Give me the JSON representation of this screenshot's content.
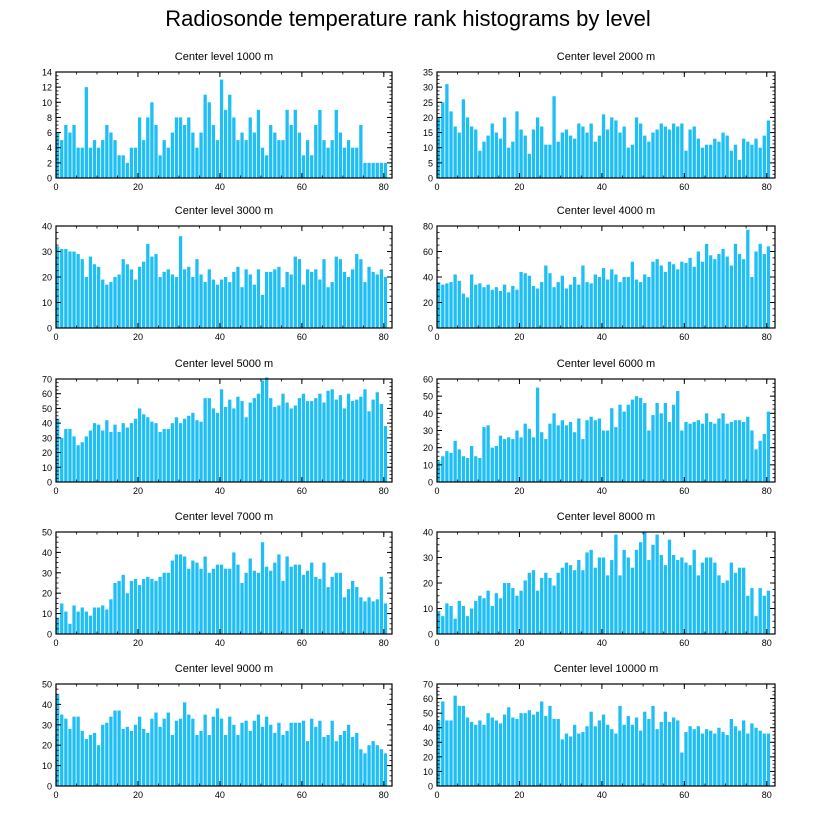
{
  "title": "Radiosonde temperature rank histograms by level",
  "bar_color": "#1fbff5",
  "chart_data": [
    {
      "type": "bar",
      "title": "Center level 1000 m",
      "xlabel": "",
      "ylabel": "",
      "xlim": [
        0,
        82
      ],
      "ylim": [
        0,
        14
      ],
      "yticks": [
        0,
        2,
        4,
        6,
        8,
        10,
        12,
        14
      ],
      "xticks": [
        0,
        20,
        40,
        60,
        80
      ],
      "values": [
        6,
        5,
        7,
        6,
        7,
        4,
        4,
        12,
        4,
        5,
        4,
        5,
        7,
        6,
        5,
        3,
        3,
        2,
        4,
        4,
        8,
        5,
        8,
        10,
        7,
        3,
        5,
        4,
        6,
        8,
        8,
        7,
        8,
        6,
        4,
        6,
        11,
        10,
        7,
        5,
        13,
        9,
        11,
        8,
        5,
        6,
        5,
        8,
        6,
        9,
        4,
        3,
        7,
        6,
        5,
        5,
        9,
        7,
        9,
        6,
        3,
        5,
        3,
        7,
        9,
        5,
        4,
        5,
        9,
        6,
        4,
        5,
        4,
        4,
        7,
        2,
        2,
        2,
        2,
        2,
        2
      ]
    },
    {
      "type": "bar",
      "title": "Center level 2000 m",
      "xlabel": "",
      "ylabel": "",
      "xlim": [
        0,
        82
      ],
      "ylim": [
        0,
        35
      ],
      "yticks": [
        0,
        5,
        10,
        15,
        20,
        25,
        30,
        35
      ],
      "xticks": [
        0,
        20,
        40,
        60,
        80
      ],
      "values": [
        20,
        25,
        31,
        22,
        17,
        15,
        26,
        20,
        17,
        16,
        9,
        12,
        14,
        18,
        15,
        13,
        20,
        10,
        12,
        22,
        16,
        14,
        8,
        16,
        20,
        17,
        11,
        11,
        27,
        12,
        15,
        16,
        14,
        13,
        18,
        17,
        15,
        18,
        12,
        14,
        21,
        16,
        20,
        19,
        15,
        17,
        10,
        11,
        20,
        18,
        14,
        12,
        15,
        16,
        18,
        17,
        16,
        18,
        17,
        18,
        9,
        16,
        17,
        13,
        10,
        11,
        11,
        13,
        12,
        15,
        14,
        9,
        11,
        6,
        13,
        12,
        11,
        13,
        10,
        14,
        19
      ]
    },
    {
      "type": "bar",
      "title": "Center level 3000 m",
      "xlabel": "",
      "ylabel": "",
      "xlim": [
        0,
        82
      ],
      "ylim": [
        0,
        40
      ],
      "yticks": [
        0,
        10,
        20,
        30,
        40
      ],
      "xticks": [
        0,
        20,
        40,
        60,
        80
      ],
      "values": [
        32,
        31,
        31,
        30,
        30,
        29,
        27,
        20,
        28,
        25,
        24,
        19,
        17,
        18,
        20,
        21,
        27,
        25,
        23,
        19,
        24,
        26,
        33,
        28,
        29,
        20,
        22,
        23,
        21,
        20,
        36,
        23,
        24,
        20,
        27,
        21,
        18,
        23,
        19,
        17,
        19,
        20,
        18,
        22,
        24,
        16,
        23,
        21,
        17,
        23,
        13,
        22,
        22,
        23,
        24,
        16,
        22,
        21,
        28,
        27,
        17,
        23,
        22,
        23,
        19,
        27,
        16,
        18,
        28,
        27,
        22,
        20,
        23,
        29,
        27,
        18,
        24,
        22,
        21,
        23,
        20
      ]
    },
    {
      "type": "bar",
      "title": "Center level 4000 m",
      "xlabel": "",
      "ylabel": "",
      "xlim": [
        0,
        82
      ],
      "ylim": [
        0,
        80
      ],
      "yticks": [
        0,
        20,
        40,
        60,
        80
      ],
      "xticks": [
        0,
        20,
        40,
        60,
        80
      ],
      "values": [
        36,
        34,
        35,
        36,
        42,
        37,
        27,
        24,
        42,
        34,
        35,
        32,
        34,
        30,
        32,
        29,
        34,
        28,
        33,
        30,
        44,
        43,
        41,
        33,
        31,
        36,
        49,
        43,
        32,
        36,
        41,
        31,
        34,
        40,
        34,
        49,
        36,
        35,
        42,
        40,
        47,
        38,
        46,
        42,
        36,
        40,
        40,
        52,
        38,
        36,
        42,
        40,
        52,
        54,
        49,
        44,
        52,
        50,
        46,
        52,
        51,
        55,
        48,
        60,
        52,
        66,
        57,
        54,
        58,
        62,
        56,
        49,
        66,
        58,
        54,
        77,
        40,
        60,
        66,
        58,
        64
      ]
    },
    {
      "type": "bar",
      "title": "Center level 5000 m",
      "xlabel": "",
      "ylabel": "",
      "xlim": [
        0,
        82
      ],
      "ylim": [
        0,
        70
      ],
      "yticks": [
        0,
        10,
        20,
        30,
        40,
        50,
        60,
        70
      ],
      "xticks": [
        0,
        20,
        40,
        60,
        80
      ],
      "values": [
        43,
        30,
        36,
        36,
        31,
        25,
        27,
        31,
        35,
        40,
        39,
        35,
        42,
        34,
        39,
        34,
        40,
        37,
        40,
        43,
        50,
        46,
        44,
        41,
        40,
        34,
        36,
        36,
        40,
        44,
        40,
        43,
        45,
        47,
        42,
        41,
        57,
        57,
        50,
        47,
        63,
        51,
        56,
        50,
        58,
        55,
        44,
        54,
        57,
        60,
        69,
        71,
        57,
        51,
        52,
        60,
        54,
        50,
        52,
        57,
        60,
        55,
        55,
        57,
        60,
        54,
        62,
        63,
        56,
        59,
        50,
        60,
        55,
        56,
        58,
        63,
        48,
        56,
        61,
        53,
        38
      ]
    },
    {
      "type": "bar",
      "title": "Center level 6000 m",
      "xlabel": "",
      "ylabel": "",
      "xlim": [
        0,
        82
      ],
      "ylim": [
        0,
        60
      ],
      "yticks": [
        0,
        10,
        20,
        30,
        40,
        50,
        60
      ],
      "xticks": [
        0,
        20,
        40,
        60,
        80
      ],
      "values": [
        12,
        15,
        18,
        17,
        24,
        19,
        15,
        14,
        21,
        15,
        14,
        32,
        33,
        20,
        21,
        27,
        25,
        26,
        25,
        30,
        26,
        34,
        31,
        26,
        55,
        29,
        25,
        34,
        40,
        33,
        36,
        33,
        35,
        29,
        37,
        25,
        36,
        38,
        36,
        37,
        30,
        30,
        43,
        32,
        45,
        41,
        45,
        48,
        50,
        49,
        46,
        30,
        39,
        46,
        40,
        46,
        35,
        45,
        53,
        30,
        35,
        34,
        35,
        36,
        34,
        40,
        35,
        34,
        37,
        40,
        34,
        35,
        36,
        36,
        35,
        38,
        30,
        19,
        24,
        28,
        41
      ]
    },
    {
      "type": "bar",
      "title": "Center level 7000 m",
      "xlabel": "",
      "ylabel": "",
      "xlim": [
        0,
        82
      ],
      "ylim": [
        0,
        50
      ],
      "yticks": [
        0,
        10,
        20,
        30,
        40,
        50
      ],
      "xticks": [
        0,
        20,
        40,
        60,
        80
      ],
      "values": [
        8,
        15,
        11,
        5,
        14,
        11,
        13,
        11,
        9,
        13,
        13,
        14,
        12,
        17,
        25,
        26,
        29,
        20,
        26,
        27,
        24,
        27,
        28,
        27,
        26,
        28,
        30,
        30,
        36,
        39,
        39,
        38,
        32,
        36,
        35,
        32,
        38,
        30,
        32,
        34,
        34,
        32,
        32,
        40,
        34,
        25,
        30,
        37,
        31,
        30,
        45,
        33,
        31,
        35,
        39,
        26,
        38,
        33,
        34,
        34,
        29,
        31,
        35,
        28,
        27,
        35,
        23,
        28,
        30,
        30,
        18,
        22,
        26,
        23,
        18,
        16,
        18,
        16,
        17,
        28,
        15
      ]
    },
    {
      "type": "bar",
      "title": "Center level 8000 m",
      "xlabel": "",
      "ylabel": "",
      "xlim": [
        0,
        82
      ],
      "ylim": [
        0,
        40
      ],
      "yticks": [
        0,
        10,
        20,
        30,
        40
      ],
      "xticks": [
        0,
        20,
        40,
        60,
        80
      ],
      "values": [
        9,
        7,
        12,
        11,
        6,
        13,
        11,
        7,
        10,
        13,
        15,
        14,
        17,
        11,
        16,
        14,
        20,
        20,
        18,
        15,
        17,
        21,
        24,
        25,
        17,
        22,
        24,
        22,
        19,
        24,
        26,
        28,
        27,
        25,
        29,
        25,
        32,
        33,
        26,
        30,
        30,
        23,
        29,
        39,
        23,
        33,
        30,
        26,
        33,
        36,
        40,
        29,
        35,
        39,
        31,
        27,
        37,
        31,
        29,
        30,
        28,
        27,
        33,
        23,
        28,
        30,
        30,
        28,
        23,
        20,
        21,
        28,
        24,
        26,
        26,
        15,
        18,
        7,
        18,
        15,
        17
      ]
    },
    {
      "type": "bar",
      "title": "Center level 9000 m",
      "xlabel": "",
      "ylabel": "",
      "xlim": [
        0,
        82
      ],
      "ylim": [
        0,
        50
      ],
      "yticks": [
        0,
        10,
        20,
        30,
        40,
        50
      ],
      "xticks": [
        0,
        20,
        40,
        60,
        80
      ],
      "values": [
        45,
        35,
        33,
        28,
        34,
        34,
        27,
        23,
        25,
        26,
        20,
        30,
        31,
        34,
        37,
        37,
        28,
        29,
        27,
        30,
        34,
        28,
        26,
        33,
        36,
        29,
        33,
        36,
        25,
        32,
        33,
        41,
        35,
        33,
        25,
        27,
        35,
        25,
        34,
        38,
        33,
        25,
        34,
        30,
        25,
        31,
        32,
        27,
        32,
        35,
        29,
        34,
        30,
        26,
        31,
        25,
        27,
        31,
        31,
        31,
        32,
        22,
        33,
        29,
        32,
        24,
        25,
        32,
        22,
        25,
        27,
        30,
        24,
        26,
        18,
        16,
        20,
        22,
        20,
        18,
        16
      ]
    },
    {
      "type": "bar",
      "title": "Center level 10000 m",
      "xlabel": "",
      "ylabel": "",
      "xlim": [
        0,
        82
      ],
      "ylim": [
        0,
        70
      ],
      "yticks": [
        0,
        10,
        20,
        30,
        40,
        50,
        60,
        70
      ],
      "xticks": [
        0,
        20,
        40,
        60,
        80
      ],
      "values": [
        45,
        58,
        45,
        45,
        62,
        55,
        55,
        47,
        44,
        42,
        45,
        42,
        50,
        47,
        45,
        43,
        49,
        54,
        47,
        46,
        50,
        50,
        52,
        49,
        51,
        58,
        48,
        55,
        46,
        46,
        32,
        36,
        34,
        42,
        36,
        37,
        41,
        51,
        41,
        45,
        49,
        42,
        39,
        36,
        55,
        42,
        48,
        42,
        47,
        38,
        51,
        46,
        55,
        39,
        44,
        51,
        44,
        47,
        45,
        23,
        37,
        41,
        39,
        41,
        36,
        39,
        38,
        36,
        40,
        37,
        35,
        46,
        41,
        38,
        45,
        36,
        43,
        40,
        38,
        36,
        36
      ]
    }
  ]
}
